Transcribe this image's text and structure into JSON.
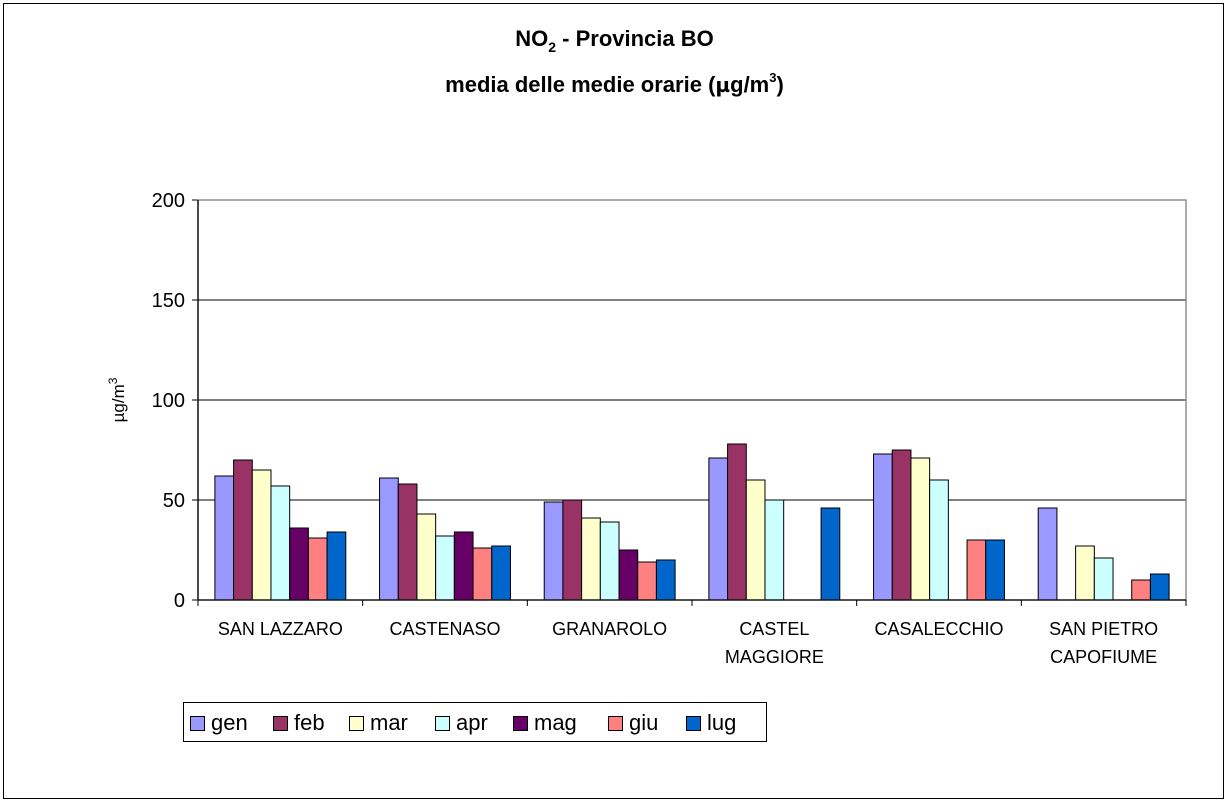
{
  "title": {
    "line1_pre": "NO",
    "line1_sub": "2",
    "line1_post": " - Provincia BO",
    "line2_pre": "media delle medie orarie (",
    "line2_mu": "µ",
    "line2_mid": "g/m",
    "line2_sup": "3",
    "line2_post": ")"
  },
  "chart_data": {
    "type": "bar",
    "title": "NO2 - Provincia BO media delle medie orarie (µg/m3)",
    "ylabel_pre": "µg/m",
    "ylabel_sup": "3",
    "ylim": [
      0,
      200
    ],
    "yticks": [
      0,
      50,
      100,
      150,
      200
    ],
    "grid": true,
    "legend_position": "bottom-left",
    "categories": [
      [
        "SAN LAZZARO"
      ],
      [
        "CASTENASO"
      ],
      [
        "GRANAROLO"
      ],
      [
        "CASTEL",
        "MAGGIORE"
      ],
      [
        "CASALECCHIO"
      ],
      [
        "SAN PIETRO",
        "CAPOFIUME"
      ]
    ],
    "series": [
      {
        "name": "gen",
        "color": "#9999ff",
        "values": [
          62,
          61,
          49,
          71,
          73,
          46
        ]
      },
      {
        "name": "feb",
        "color": "#993366",
        "values": [
          70,
          58,
          50,
          78,
          75,
          null
        ]
      },
      {
        "name": "mar",
        "color": "#ffffcc",
        "values": [
          65,
          43,
          41,
          60,
          71,
          27
        ]
      },
      {
        "name": "apr",
        "color": "#ccffff",
        "values": [
          57,
          32,
          39,
          50,
          60,
          21
        ]
      },
      {
        "name": "mag",
        "color": "#660066",
        "values": [
          36,
          34,
          25,
          null,
          null,
          null
        ]
      },
      {
        "name": "giu",
        "color": "#ff8080",
        "values": [
          31,
          26,
          19,
          null,
          30,
          10
        ]
      },
      {
        "name": "lug",
        "color": "#0066cc",
        "values": [
          34,
          27,
          20,
          46,
          30,
          13
        ]
      }
    ]
  }
}
